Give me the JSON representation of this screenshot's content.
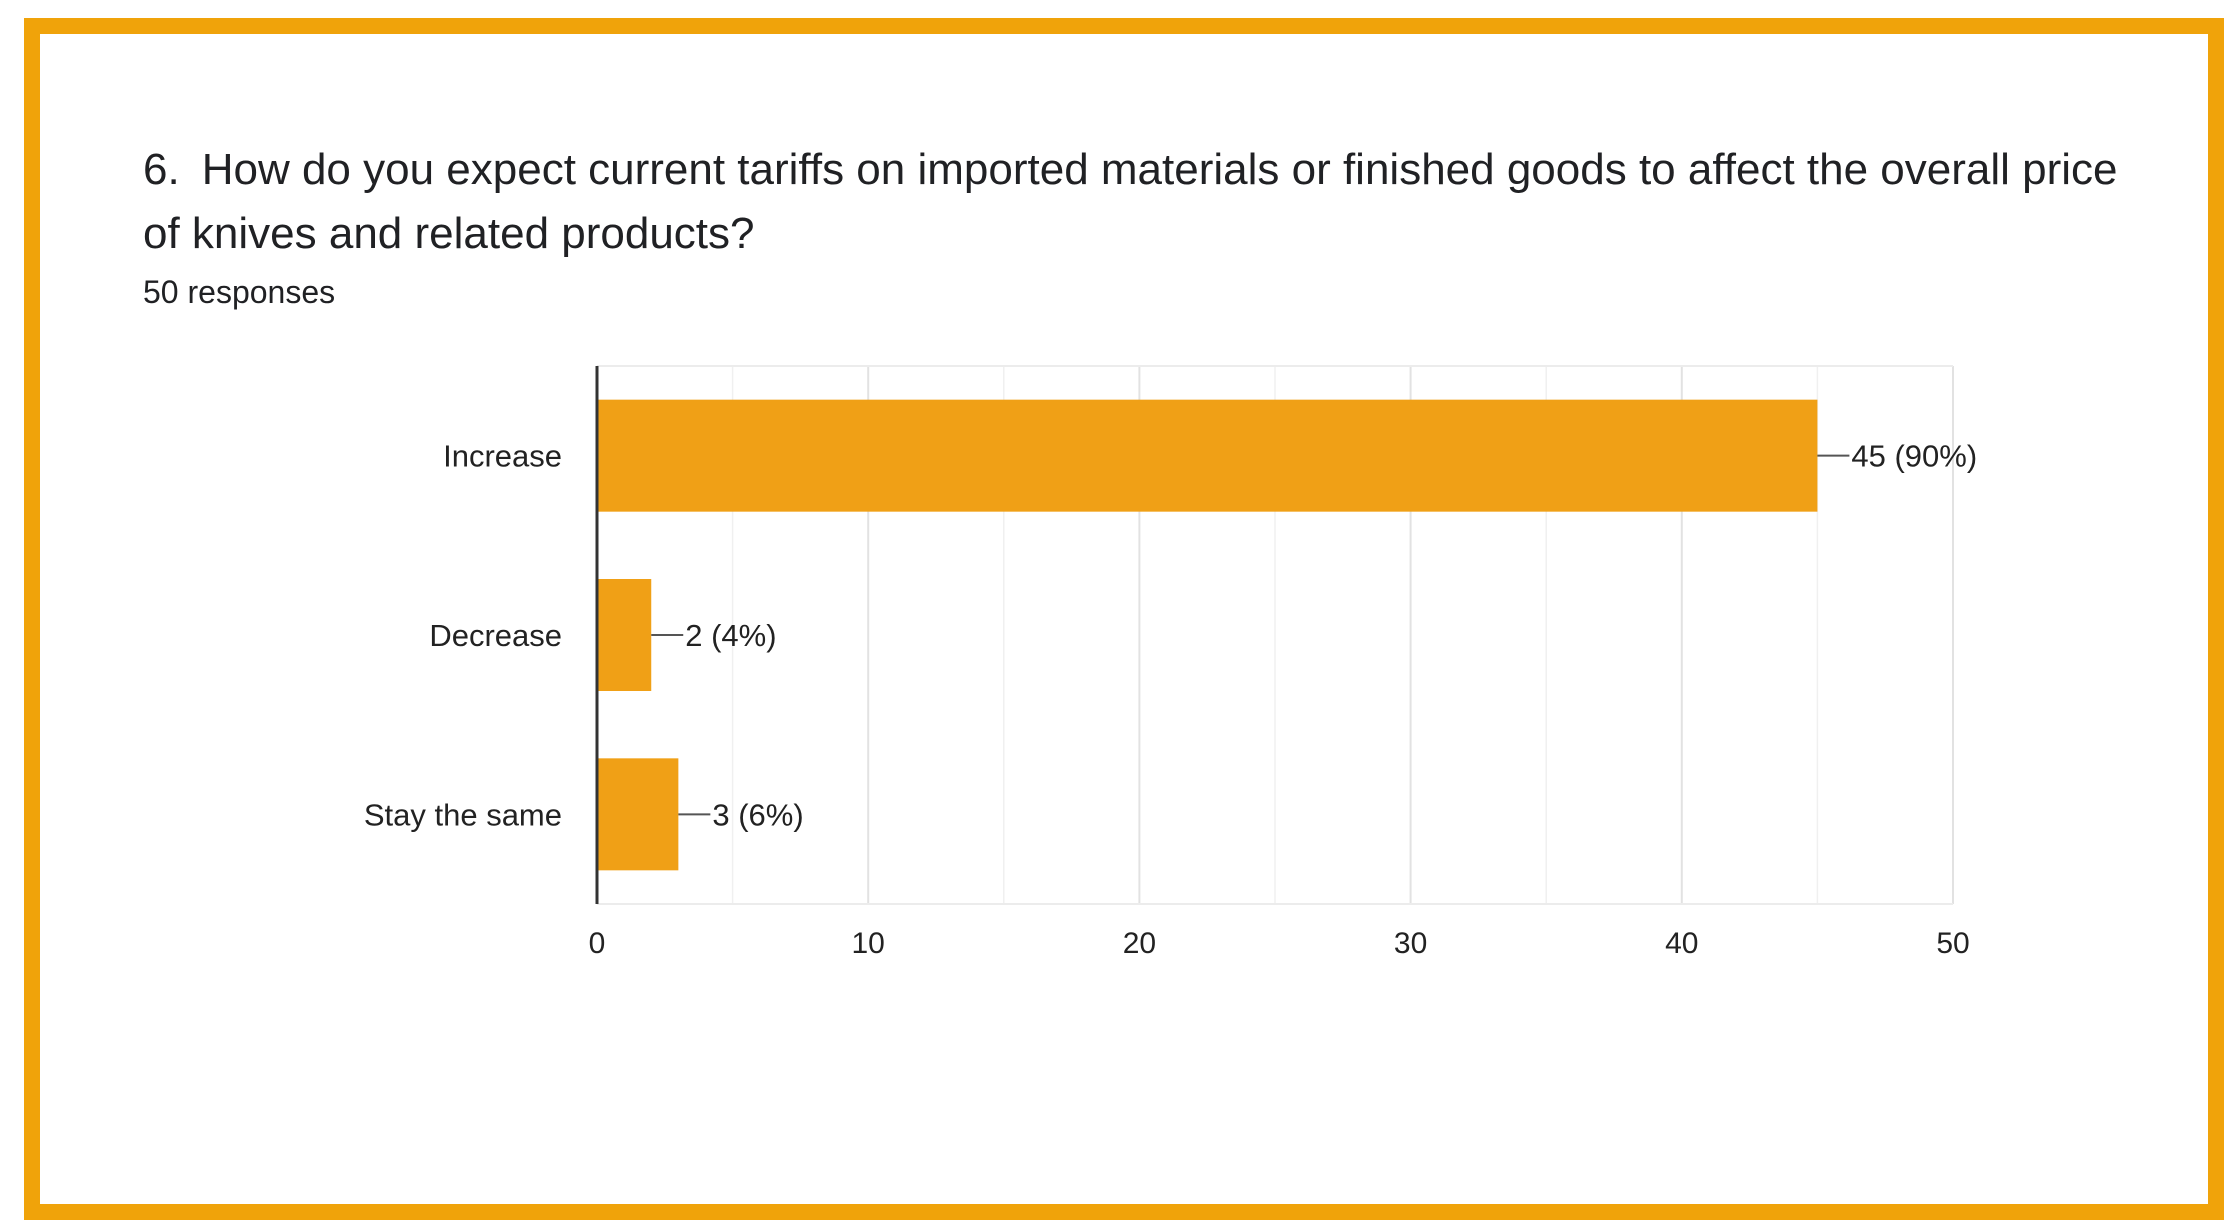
{
  "question": {
    "number": "6.",
    "text": "How do you expect current tariffs on imported materials or finished goods to affect the overall price of knives and related products?",
    "responses": "50 responses"
  },
  "colors": {
    "frame": "#f0a30a",
    "bar": "#f0a016",
    "grid": "#e6e6e6",
    "axis": "#333333"
  },
  "chart_data": {
    "type": "bar",
    "orientation": "horizontal",
    "title": "",
    "xlabel": "",
    "ylabel": "",
    "categories": [
      "Increase",
      "Decrease",
      "Stay the same"
    ],
    "values": [
      45,
      2,
      3
    ],
    "data_labels": [
      "45 (90%)",
      "2 (4%)",
      "3 (6%)"
    ],
    "xlim": [
      0,
      50
    ],
    "x_ticks": [
      0,
      10,
      20,
      30,
      40,
      50
    ],
    "x_tick_labels": [
      "0",
      "10",
      "20",
      "30",
      "40",
      "50"
    ],
    "grid": true,
    "legend": "none"
  }
}
